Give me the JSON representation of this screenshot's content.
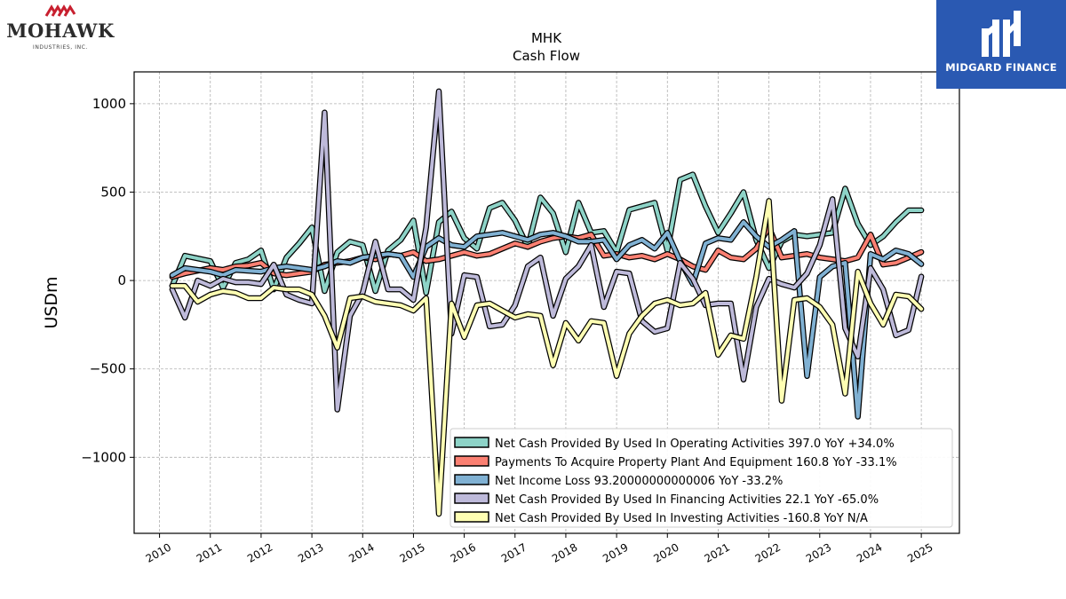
{
  "logos": {
    "left": {
      "name": "MOHAWK",
      "subtitle": "INDUSTRIES, INC."
    },
    "right": {
      "name": "MIDGARD FINANCE"
    }
  },
  "chart_data": {
    "type": "line",
    "title": "MHK",
    "subtitle": "Cash Flow",
    "xlabel": "",
    "ylabel": "USDm",
    "ylim": [
      -1430,
      1180
    ],
    "xlim": [
      2009.5,
      2025.75
    ],
    "yticks": [
      1000,
      500,
      0,
      -500,
      -1000
    ],
    "ytick_labels": [
      "1000",
      "500",
      "0",
      "−500",
      "−1000"
    ],
    "xticks": [
      2010,
      2011,
      2012,
      2013,
      2014,
      2015,
      2016,
      2017,
      2018,
      2019,
      2020,
      2021,
      2022,
      2023,
      2024,
      2025
    ],
    "xtick_labels": [
      "2010",
      "2011",
      "2012",
      "2013",
      "2014",
      "2015",
      "2016",
      "2017",
      "2018",
      "2019",
      "2020",
      "2021",
      "2022",
      "2023",
      "2024",
      "2025"
    ],
    "grid": true,
    "legend_position": "lower-right",
    "series": [
      {
        "name": "Net Cash Provided By Used In Operating Activities",
        "legend": "Net Cash Provided By Used In Operating Activities  397.0 YoY +34.0%",
        "color": "#8dd3c7",
        "x": [
          2010.25,
          2010.5,
          2010.75,
          2011.0,
          2011.25,
          2011.5,
          2011.75,
          2012.0,
          2012.25,
          2012.5,
          2012.75,
          2013.0,
          2013.25,
          2013.5,
          2013.75,
          2014.0,
          2014.25,
          2014.5,
          2014.75,
          2015.0,
          2015.25,
          2015.5,
          2015.75,
          2016.0,
          2016.25,
          2016.5,
          2016.75,
          2017.0,
          2017.25,
          2017.5,
          2017.75,
          2018.0,
          2018.25,
          2018.5,
          2018.75,
          2019.0,
          2019.25,
          2019.5,
          2019.75,
          2020.0,
          2020.25,
          2020.5,
          2020.75,
          2021.0,
          2021.25,
          2021.5,
          2021.75,
          2022.0,
          2022.25,
          2022.5,
          2022.75,
          2023.0,
          2023.25,
          2023.5,
          2023.75,
          2024.0,
          2024.25,
          2024.5,
          2024.75,
          2025.0
        ],
        "y": [
          -30,
          140,
          125,
          110,
          -40,
          100,
          120,
          170,
          -50,
          130,
          210,
          300,
          -60,
          160,
          220,
          200,
          -60,
          170,
          230,
          340,
          -70,
          330,
          390,
          240,
          180,
          410,
          440,
          340,
          190,
          470,
          380,
          160,
          440,
          270,
          280,
          160,
          400,
          420,
          440,
          170,
          570,
          600,
          420,
          270,
          380,
          500,
          230,
          70,
          220,
          260,
          250,
          260,
          270,
          520,
          320,
          200,
          250,
          330,
          397,
          397
        ]
      },
      {
        "name": "Payments To Acquire Property Plant And Equipment",
        "legend": "Payments To Acquire Property Plant And Equipment  160.8 YoY -33.1%",
        "color": "#fb8072",
        "x": [
          2010.25,
          2010.5,
          2010.75,
          2011.0,
          2011.25,
          2011.5,
          2011.75,
          2012.0,
          2012.25,
          2012.5,
          2012.75,
          2013.0,
          2013.25,
          2013.5,
          2013.75,
          2014.0,
          2014.25,
          2014.5,
          2014.75,
          2015.0,
          2015.25,
          2015.5,
          2015.75,
          2016.0,
          2016.25,
          2016.5,
          2016.75,
          2017.0,
          2017.25,
          2017.5,
          2017.75,
          2018.0,
          2018.25,
          2018.5,
          2018.75,
          2019.0,
          2019.25,
          2019.5,
          2019.75,
          2020.0,
          2020.25,
          2020.5,
          2020.75,
          2021.0,
          2021.25,
          2021.5,
          2021.75,
          2022.0,
          2022.25,
          2022.5,
          2022.75,
          2023.0,
          2023.25,
          2023.5,
          2023.75,
          2024.0,
          2024.25,
          2024.5,
          2024.75,
          2025.0
        ],
        "y": [
          20,
          40,
          55,
          70,
          60,
          80,
          85,
          100,
          40,
          30,
          40,
          50,
          90,
          100,
          110,
          130,
          120,
          150,
          140,
          160,
          110,
          120,
          140,
          160,
          140,
          150,
          180,
          210,
          190,
          220,
          240,
          250,
          240,
          260,
          140,
          150,
          130,
          140,
          120,
          150,
          120,
          80,
          60,
          170,
          130,
          120,
          180,
          300,
          130,
          140,
          150,
          130,
          120,
          110,
          130,
          260,
          90,
          100,
          130,
          161
        ]
      },
      {
        "name": "Net Income Loss",
        "legend": "Net Income Loss  93.20000000000006 YoY -33.2%",
        "color": "#80b1d3",
        "x": [
          2010.25,
          2010.5,
          2010.75,
          2011.0,
          2011.25,
          2011.5,
          2011.75,
          2012.0,
          2012.25,
          2012.5,
          2012.75,
          2013.0,
          2013.25,
          2013.5,
          2013.75,
          2014.0,
          2014.25,
          2014.5,
          2014.75,
          2015.0,
          2015.25,
          2015.5,
          2015.75,
          2016.0,
          2016.25,
          2016.5,
          2016.75,
          2017.0,
          2017.25,
          2017.5,
          2017.75,
          2018.0,
          2018.25,
          2018.5,
          2018.75,
          2019.0,
          2019.25,
          2019.5,
          2019.75,
          2020.0,
          2020.25,
          2020.5,
          2020.75,
          2021.0,
          2021.25,
          2021.5,
          2021.75,
          2022.0,
          2022.25,
          2022.5,
          2022.75,
          2023.0,
          2023.25,
          2023.5,
          2023.75,
          2024.0,
          2024.25,
          2024.5,
          2024.75,
          2025.0
        ],
        "y": [
          30,
          70,
          60,
          50,
          30,
          60,
          55,
          50,
          70,
          80,
          70,
          60,
          80,
          110,
          100,
          130,
          140,
          150,
          140,
          20,
          190,
          240,
          200,
          190,
          250,
          260,
          270,
          250,
          230,
          260,
          270,
          250,
          220,
          220,
          230,
          120,
          200,
          230,
          180,
          270,
          110,
          -20,
          210,
          240,
          230,
          330,
          250,
          190,
          230,
          280,
          -540,
          20,
          80,
          100,
          -770,
          150,
          120,
          170,
          150,
          93
        ]
      },
      {
        "name": "Net Cash Provided By Used In Financing Activities",
        "legend": "Net Cash Provided By Used In Financing Activities  22.1 YoY -65.0%",
        "color": "#bebada",
        "x": [
          2010.25,
          2010.5,
          2010.75,
          2011.0,
          2011.25,
          2011.5,
          2011.75,
          2012.0,
          2012.25,
          2012.5,
          2012.75,
          2013.0,
          2013.25,
          2013.5,
          2013.75,
          2014.0,
          2014.25,
          2014.5,
          2014.75,
          2015.0,
          2015.25,
          2015.5,
          2015.75,
          2016.0,
          2016.25,
          2016.5,
          2016.75,
          2017.0,
          2017.25,
          2017.5,
          2017.75,
          2018.0,
          2018.25,
          2018.5,
          2018.75,
          2019.0,
          2019.25,
          2019.5,
          2019.75,
          2020.0,
          2020.25,
          2020.5,
          2020.75,
          2021.0,
          2021.25,
          2021.5,
          2021.75,
          2022.0,
          2022.25,
          2022.5,
          2022.75,
          2023.0,
          2023.25,
          2023.5,
          2023.75,
          2024.0,
          2024.25,
          2024.5,
          2024.75,
          2025.0
        ],
        "y": [
          -50,
          -210,
          0,
          -30,
          10,
          -10,
          -10,
          -20,
          90,
          -80,
          -110,
          -130,
          950,
          -730,
          -200,
          -70,
          220,
          -50,
          -50,
          -110,
          300,
          1070,
          -300,
          30,
          20,
          -260,
          -250,
          -140,
          80,
          130,
          -200,
          10,
          80,
          200,
          -150,
          50,
          40,
          -230,
          -290,
          -270,
          100,
          10,
          -140,
          -130,
          -130,
          -560,
          -150,
          10,
          -20,
          -40,
          40,
          200,
          460,
          -270,
          -430,
          70,
          -50,
          -310,
          -280,
          22
        ]
      },
      {
        "name": "Net Cash Provided By Used In Investing Activities",
        "legend": "Net Cash Provided By Used In Investing Activities  -160.8 YoY N/A",
        "color": "#ffffb3",
        "x": [
          2010.25,
          2010.5,
          2010.75,
          2011.0,
          2011.25,
          2011.5,
          2011.75,
          2012.0,
          2012.25,
          2012.5,
          2012.75,
          2013.0,
          2013.25,
          2013.5,
          2013.75,
          2014.0,
          2014.25,
          2014.5,
          2014.75,
          2015.0,
          2015.25,
          2015.5,
          2015.75,
          2016.0,
          2016.25,
          2016.5,
          2016.75,
          2017.0,
          2017.25,
          2017.5,
          2017.75,
          2018.0,
          2018.25,
          2018.5,
          2018.75,
          2019.0,
          2019.25,
          2019.5,
          2019.75,
          2020.0,
          2020.25,
          2020.5,
          2020.75,
          2021.0,
          2021.25,
          2021.5,
          2021.75,
          2022.0,
          2022.25,
          2022.5,
          2022.75,
          2023.0,
          2023.25,
          2023.5,
          2023.75,
          2024.0,
          2024.25,
          2024.5,
          2024.75,
          2025.0
        ],
        "y": [
          -30,
          -30,
          -120,
          -80,
          -60,
          -70,
          -100,
          -100,
          -40,
          -50,
          -50,
          -80,
          -200,
          -380,
          -100,
          -90,
          -120,
          -130,
          -140,
          -170,
          -100,
          -1320,
          -130,
          -320,
          -140,
          -130,
          -170,
          -210,
          -190,
          -200,
          -480,
          -240,
          -340,
          -230,
          -240,
          -540,
          -300,
          -200,
          -130,
          -110,
          -140,
          -130,
          -70,
          -420,
          -310,
          -330,
          20,
          450,
          -680,
          -110,
          -100,
          -150,
          -250,
          -640,
          50,
          -130,
          -250,
          -80,
          -90,
          -161
        ]
      }
    ]
  }
}
